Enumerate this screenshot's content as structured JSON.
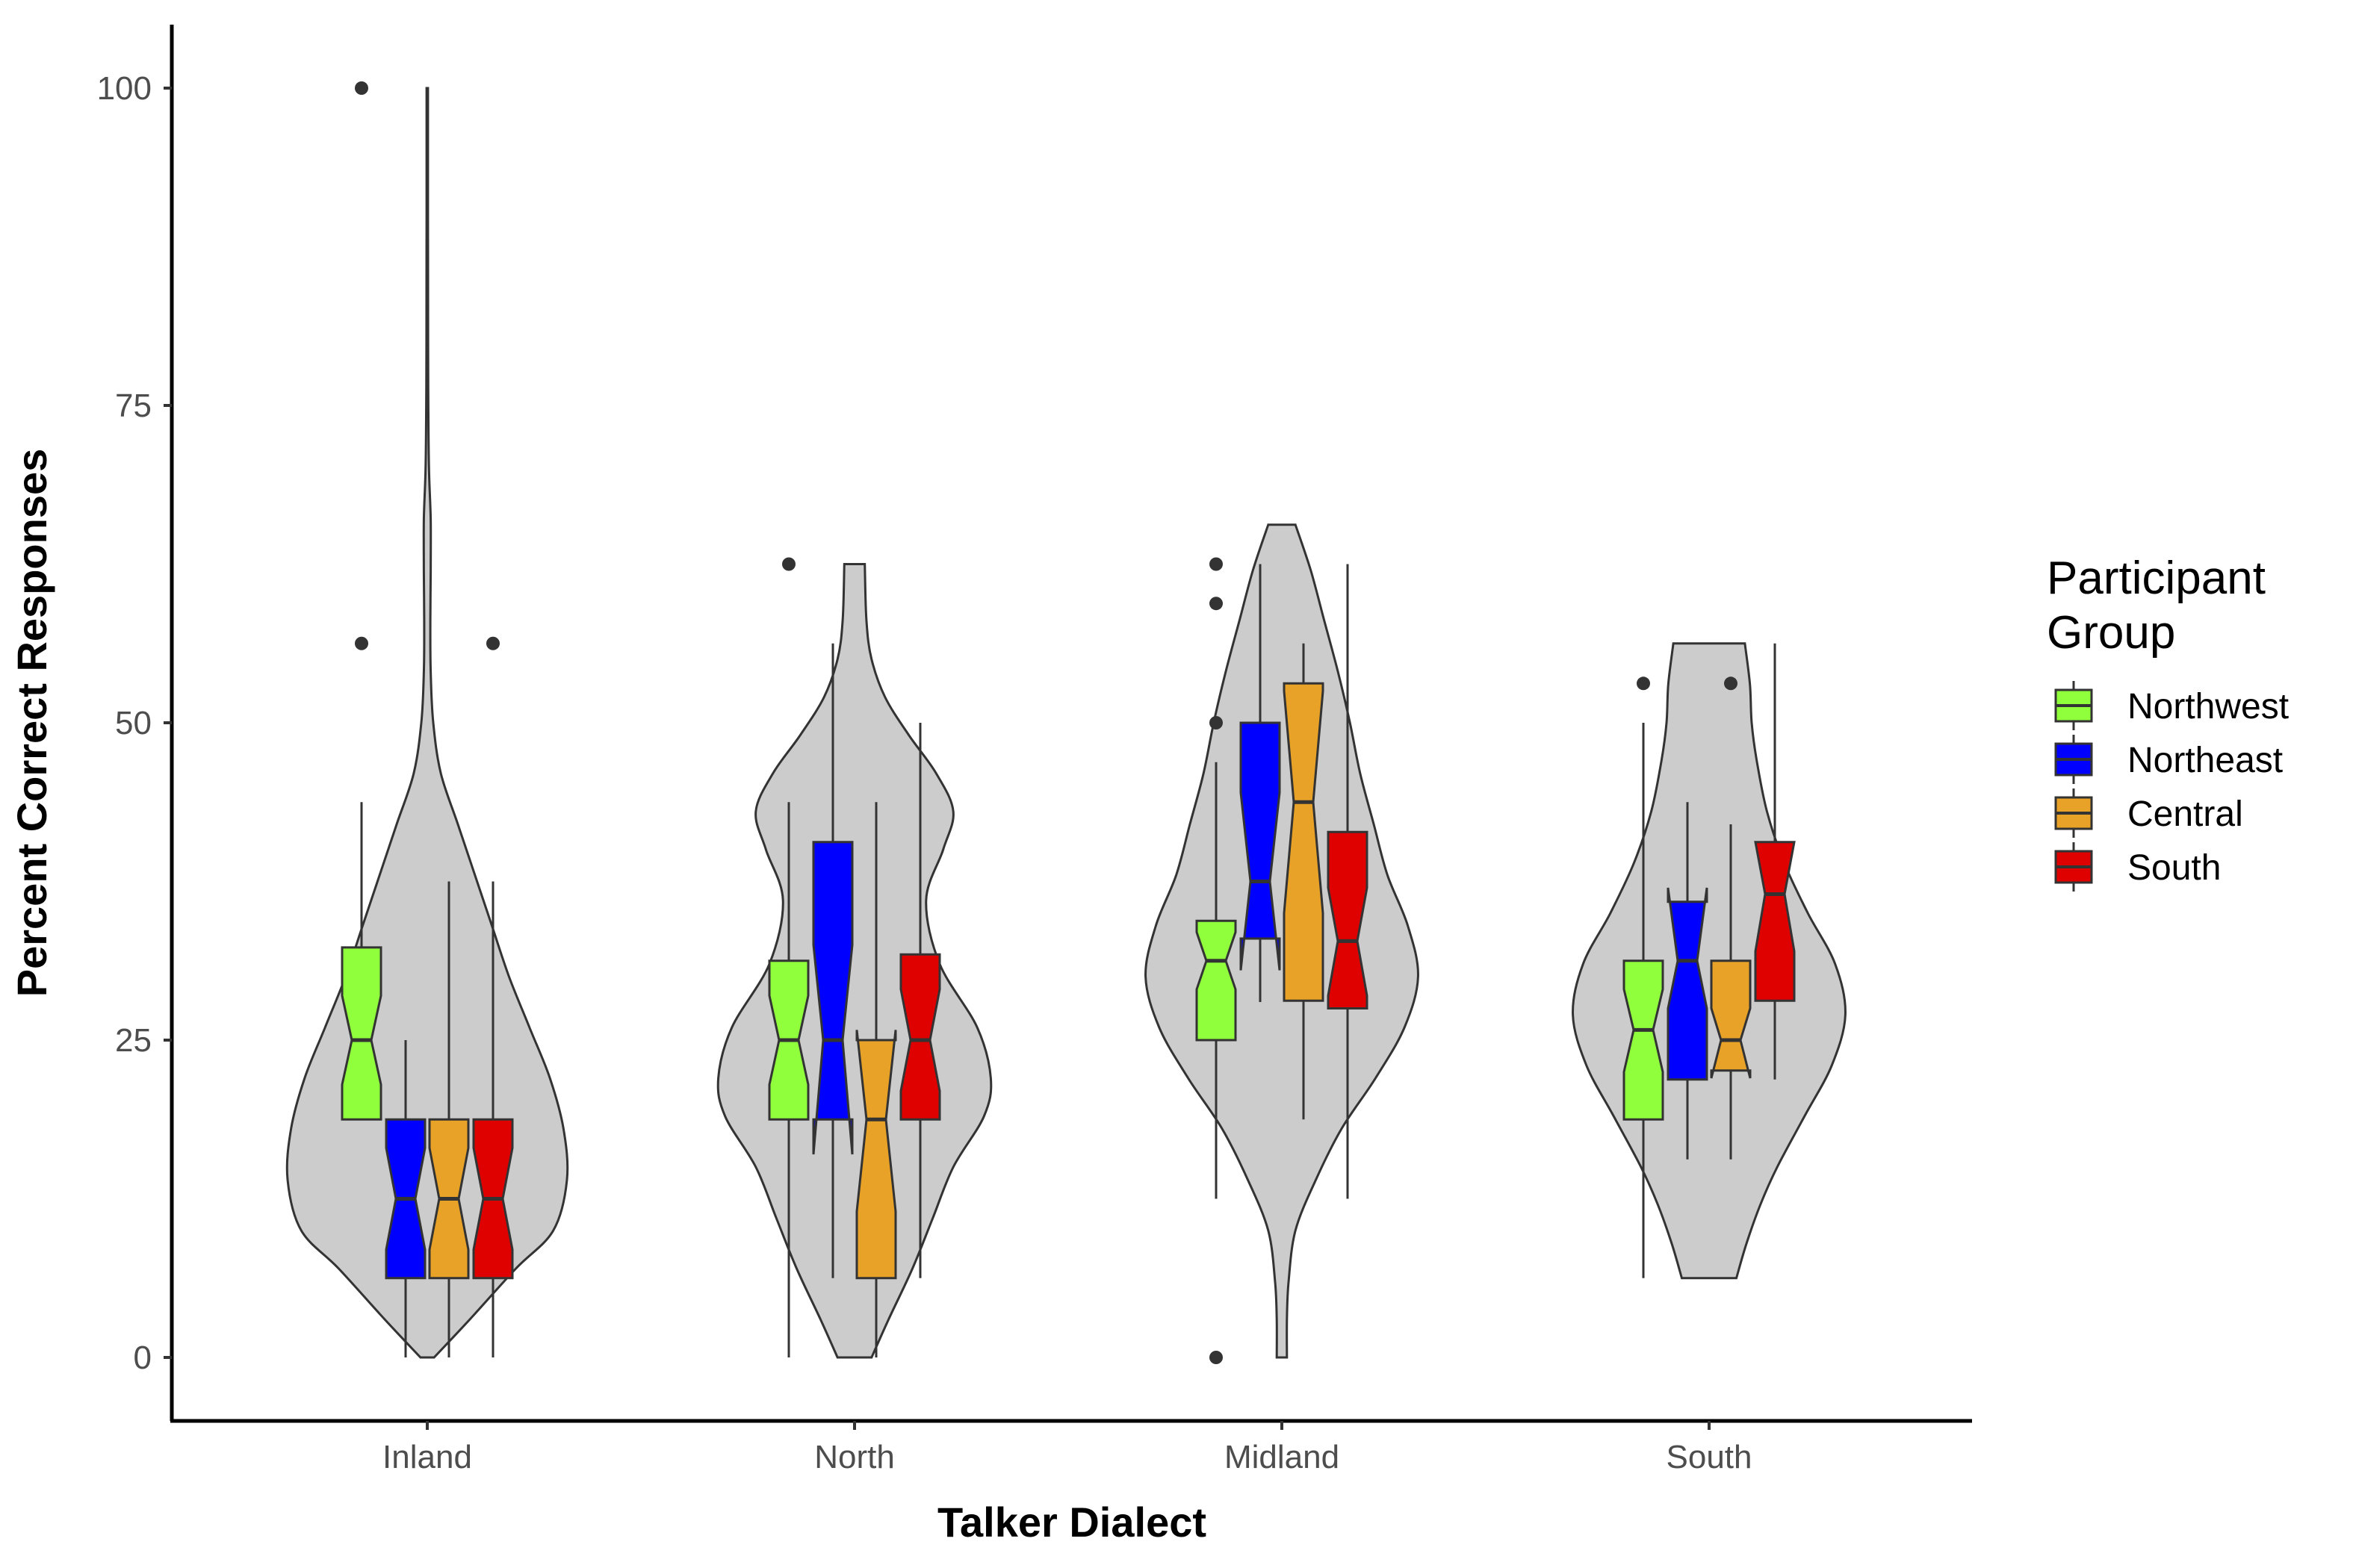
{
  "chart_data": {
    "type": "violin-boxplot",
    "xlabel": "Talker Dialect",
    "ylabel": "Percent Correct Responses",
    "ylim": [
      -5,
      105
    ],
    "yticks": [
      0,
      25,
      50,
      75,
      100
    ],
    "grid": false,
    "legend": {
      "title_lines": [
        "Participant",
        "Group"
      ],
      "placement": "right",
      "entries": [
        {
          "name": "Northwest",
          "color": "#90ff3c"
        },
        {
          "name": "Northeast",
          "color": "#0000ff"
        },
        {
          "name": "Central",
          "color": "#e8a227"
        },
        {
          "name": "South",
          "color": "#df0000"
        }
      ]
    },
    "colors": {
      "violin_fill": "#cccccc",
      "outline": "#333333",
      "outlier": "#333333",
      "axis": "#000000"
    },
    "categories": [
      {
        "name": "Inland",
        "violin": {
          "range": [
            0,
            100
          ],
          "profile": [
            [
              0,
              0.04
            ],
            [
              3,
              0.25
            ],
            [
              7,
              0.52
            ],
            [
              10,
              0.74
            ],
            [
              14,
              0.82
            ],
            [
              18,
              0.8
            ],
            [
              22,
              0.72
            ],
            [
              26,
              0.6
            ],
            [
              30,
              0.48
            ],
            [
              34,
              0.38
            ],
            [
              38,
              0.28
            ],
            [
              42,
              0.18
            ],
            [
              46,
              0.08
            ],
            [
              50,
              0.035
            ],
            [
              54,
              0.02
            ],
            [
              58,
              0.018
            ],
            [
              62,
              0.02
            ],
            [
              66,
              0.02
            ],
            [
              70,
              0.01
            ],
            [
              75,
              0.006
            ],
            [
              80,
              0.005
            ],
            [
              90,
              0.004
            ],
            [
              100,
              0.004
            ]
          ]
        },
        "boxes": [
          {
            "group": "Northwest",
            "min": 18.75,
            "q1": 18.75,
            "median": 25,
            "q3": 32.3,
            "max": 43.75,
            "notch": [
              21.5,
              28.5
            ],
            "outliers": [
              56.25,
              100
            ]
          },
          {
            "group": "Northeast",
            "min": 0,
            "q1": 6.25,
            "median": 12.5,
            "q3": 18.75,
            "max": 25,
            "notch": [
              8.5,
              16.5
            ],
            "outliers": []
          },
          {
            "group": "Central",
            "min": 0,
            "q1": 6.25,
            "median": 12.5,
            "q3": 18.75,
            "max": 37.5,
            "notch": [
              8.5,
              16.5
            ],
            "outliers": []
          },
          {
            "group": "South",
            "min": 0,
            "q1": 6.25,
            "median": 12.5,
            "q3": 18.75,
            "max": 37.5,
            "notch": [
              8.5,
              16.5
            ],
            "outliers": [
              56.25
            ]
          }
        ]
      },
      {
        "name": "North",
        "violin": {
          "range": [
            0,
            62.5
          ],
          "profile": [
            [
              0,
              0.1
            ],
            [
              3,
              0.2
            ],
            [
              7,
              0.34
            ],
            [
              11,
              0.46
            ],
            [
              15,
              0.58
            ],
            [
              19,
              0.76
            ],
            [
              22,
              0.8
            ],
            [
              26,
              0.72
            ],
            [
              31,
              0.5
            ],
            [
              36,
              0.42
            ],
            [
              40,
              0.52
            ],
            [
              43,
              0.58
            ],
            [
              46,
              0.48
            ],
            [
              49,
              0.32
            ],
            [
              52,
              0.18
            ],
            [
              55,
              0.1
            ],
            [
              58,
              0.07
            ],
            [
              62.5,
              0.06
            ]
          ]
        },
        "boxes": [
          {
            "group": "Northwest",
            "min": 0,
            "q1": 18.75,
            "median": 25,
            "q3": 31.25,
            "max": 43.75,
            "notch": [
              21.5,
              28.5
            ],
            "outliers": [
              62.5
            ]
          },
          {
            "group": "Northeast",
            "min": 6.25,
            "q1": 18.75,
            "median": 25,
            "q3": 40.6,
            "max": 56.25,
            "notch": [
              16,
              32.5
            ],
            "outliers": []
          },
          {
            "group": "Central",
            "min": 0,
            "q1": 6.25,
            "median": 18.75,
            "q3": 25,
            "max": 43.75,
            "notch": [
              11.5,
              25.8
            ],
            "outliers": []
          },
          {
            "group": "South",
            "min": 6.25,
            "q1": 18.75,
            "median": 25,
            "q3": 31.75,
            "max": 50,
            "notch": [
              21,
              29
            ],
            "outliers": []
          }
        ]
      },
      {
        "name": "Midland",
        "violin": {
          "range": [
            0,
            65.6
          ],
          "profile": [
            [
              0,
              0.03
            ],
            [
              3,
              0.03
            ],
            [
              6,
              0.04
            ],
            [
              10,
              0.08
            ],
            [
              14,
              0.2
            ],
            [
              18,
              0.35
            ],
            [
              22,
              0.55
            ],
            [
              26,
              0.72
            ],
            [
              30,
              0.8
            ],
            [
              34,
              0.74
            ],
            [
              38,
              0.62
            ],
            [
              42,
              0.54
            ],
            [
              46,
              0.46
            ],
            [
              50,
              0.4
            ],
            [
              54,
              0.33
            ],
            [
              58,
              0.25
            ],
            [
              62,
              0.17
            ],
            [
              65.6,
              0.08
            ]
          ]
        },
        "boxes": [
          {
            "group": "Northwest",
            "min": 12.5,
            "q1": 25,
            "median": 31.25,
            "q3": 34.4,
            "max": 46.9,
            "notch": [
              29,
              33.5
            ],
            "outliers": [
              0,
              50,
              59.4,
              62.5
            ]
          },
          {
            "group": "Northeast",
            "min": 28,
            "q1": 33,
            "median": 37.5,
            "q3": 50,
            "max": 62.5,
            "notch": [
              30.5,
              44.5
            ],
            "outliers": []
          },
          {
            "group": "Central",
            "min": 18.75,
            "q1": 28.1,
            "median": 43.75,
            "q3": 53.1,
            "max": 56.25,
            "notch": [
              35,
              52.5
            ],
            "outliers": []
          },
          {
            "group": "South",
            "min": 12.5,
            "q1": 27.5,
            "median": 32.8,
            "q3": 41.4,
            "max": 62.5,
            "notch": [
              28.5,
              37
            ],
            "outliers": []
          }
        ]
      },
      {
        "name": "South",
        "violin": {
          "range": [
            6.25,
            56.25
          ],
          "profile": [
            [
              6.25,
              0.16
            ],
            [
              9,
              0.22
            ],
            [
              12,
              0.3
            ],
            [
              15,
              0.4
            ],
            [
              19,
              0.56
            ],
            [
              23,
              0.72
            ],
            [
              27,
              0.8
            ],
            [
              31,
              0.74
            ],
            [
              35,
              0.58
            ],
            [
              39,
              0.44
            ],
            [
              43,
              0.34
            ],
            [
              47,
              0.28
            ],
            [
              50,
              0.25
            ],
            [
              53,
              0.24
            ],
            [
              56.25,
              0.21
            ]
          ]
        },
        "boxes": [
          {
            "group": "Northwest",
            "min": 6.25,
            "q1": 18.75,
            "median": 25.8,
            "q3": 31.25,
            "max": 50,
            "notch": [
              22.5,
              29
            ],
            "outliers": [
              53.1
            ]
          },
          {
            "group": "Northeast",
            "min": 15.6,
            "q1": 21.9,
            "median": 31.25,
            "q3": 35.9,
            "max": 43.75,
            "notch": [
              27.5,
              37
            ],
            "outliers": []
          },
          {
            "group": "Central",
            "min": 15.6,
            "q1": 22.6,
            "median": 25,
            "q3": 31.25,
            "max": 42,
            "notch": [
              22,
              27.5
            ],
            "outliers": [
              53.1
            ]
          },
          {
            "group": "South",
            "min": 21.9,
            "q1": 28.1,
            "median": 36.5,
            "q3": 40.6,
            "max": 56.25,
            "notch": [
              32,
              40.6
            ],
            "outliers": []
          }
        ]
      }
    ]
  }
}
